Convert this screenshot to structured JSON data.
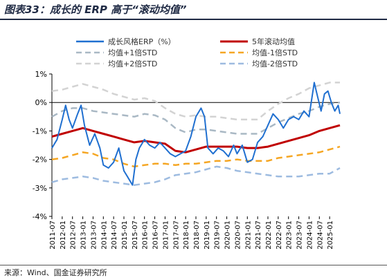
{
  "figure": {
    "title": "图表33：成长的 ERP 高于“滚动均值”",
    "source": "来源：Wind、国金证券研究所"
  },
  "colors": {
    "growth_erp": "#1f6fd0",
    "rolling_mean": "#c00000",
    "plus1std": "#a9b8c4",
    "minus1std": "#f5a623",
    "plus2std": "#d3d3d3",
    "minus2std": "#9dbbe0",
    "title_text": "#1f2a44"
  },
  "chart_data": {
    "type": "line",
    "ylim": [
      -4,
      1
    ],
    "yticks": [
      1,
      0,
      -1,
      -2,
      -3,
      -4
    ],
    "ytick_labels": [
      "1%",
      "0%",
      "-1%",
      "-2%",
      "-3%",
      "-4%"
    ],
    "xlim": [
      "2011-07",
      "2025-07"
    ],
    "xtick_labels": [
      "2011-07",
      "2012-01",
      "2012-07",
      "2013-01",
      "2013-07",
      "2014-01",
      "2014-07",
      "2015-01",
      "2015-07",
      "2016-01",
      "2016-07",
      "2017-01",
      "2017-07",
      "2018-01",
      "2018-07",
      "2019-01",
      "2019-07",
      "2020-01",
      "2020-07",
      "2021-01",
      "2021-07",
      "2022-01",
      "2022-07",
      "2023-01",
      "2023-07",
      "2024-01",
      "2024-07",
      "2025-01"
    ],
    "grid": false,
    "legend_position": "top",
    "series": [
      {
        "name": "成长风格ERP（%）",
        "color_key": "growth_erp",
        "style": "solid",
        "width": 2,
        "points": [
          [
            "2011-07",
            -1.6
          ],
          [
            "2011-10",
            -1.3
          ],
          [
            "2012-01",
            -0.6
          ],
          [
            "2012-03",
            -0.1
          ],
          [
            "2012-05",
            -0.6
          ],
          [
            "2012-07",
            -0.9
          ],
          [
            "2012-10",
            -0.4
          ],
          [
            "2012-12",
            -0.1
          ],
          [
            "2013-02",
            -0.8
          ],
          [
            "2013-05",
            -1.5
          ],
          [
            "2013-08",
            -1.1
          ],
          [
            "2013-11",
            -1.6
          ],
          [
            "2014-01",
            -2.2
          ],
          [
            "2014-04",
            -2.3
          ],
          [
            "2014-07",
            -2.1
          ],
          [
            "2014-10",
            -1.6
          ],
          [
            "2015-01",
            -2.4
          ],
          [
            "2015-03",
            -2.6
          ],
          [
            "2015-06",
            -2.9
          ],
          [
            "2015-08",
            -2.0
          ],
          [
            "2015-10",
            -1.6
          ],
          [
            "2016-01",
            -1.3
          ],
          [
            "2016-04",
            -1.5
          ],
          [
            "2016-07",
            -1.6
          ],
          [
            "2016-10",
            -1.4
          ],
          [
            "2017-01",
            -1.6
          ],
          [
            "2017-04",
            -1.8
          ],
          [
            "2017-07",
            -1.9
          ],
          [
            "2017-10",
            -1.8
          ],
          [
            "2018-01",
            -1.7
          ],
          [
            "2018-04",
            -1.2
          ],
          [
            "2018-07",
            -0.5
          ],
          [
            "2018-10",
            -0.2
          ],
          [
            "2018-12",
            -0.5
          ],
          [
            "2019-02",
            -1.6
          ],
          [
            "2019-05",
            -1.8
          ],
          [
            "2019-08",
            -1.6
          ],
          [
            "2019-11",
            -1.7
          ],
          [
            "2020-02",
            -1.9
          ],
          [
            "2020-05",
            -1.5
          ],
          [
            "2020-07",
            -1.8
          ],
          [
            "2020-10",
            -1.5
          ],
          [
            "2021-01",
            -2.1
          ],
          [
            "2021-04",
            -2.0
          ],
          [
            "2021-07",
            -1.4
          ],
          [
            "2021-10",
            -1.2
          ],
          [
            "2022-01",
            -0.8
          ],
          [
            "2022-04",
            -0.4
          ],
          [
            "2022-07",
            -0.6
          ],
          [
            "2022-10",
            -0.9
          ],
          [
            "2023-01",
            -0.6
          ],
          [
            "2023-04",
            -0.5
          ],
          [
            "2023-07",
            -0.6
          ],
          [
            "2023-10",
            -0.3
          ],
          [
            "2024-01",
            -0.5
          ],
          [
            "2024-02",
            -0.1
          ],
          [
            "2024-04",
            0.7
          ],
          [
            "2024-06",
            0.2
          ],
          [
            "2024-08",
            -0.3
          ],
          [
            "2024-10",
            0.3
          ],
          [
            "2024-12",
            0.4
          ],
          [
            "2025-02",
            0.0
          ],
          [
            "2025-04",
            -0.3
          ],
          [
            "2025-06",
            -0.1
          ],
          [
            "2025-07",
            -0.4
          ]
        ]
      },
      {
        "name": "5年滚动均值",
        "color_key": "rolling_mean",
        "style": "solid",
        "width": 3,
        "points": [
          [
            "2011-07",
            -1.2
          ],
          [
            "2012-01",
            -1.1
          ],
          [
            "2012-07",
            -1.0
          ],
          [
            "2013-01",
            -0.9
          ],
          [
            "2013-07",
            -1.0
          ],
          [
            "2014-01",
            -1.1
          ],
          [
            "2014-07",
            -1.2
          ],
          [
            "2015-01",
            -1.3
          ],
          [
            "2015-07",
            -1.4
          ],
          [
            "2016-01",
            -1.35
          ],
          [
            "2016-07",
            -1.4
          ],
          [
            "2017-01",
            -1.45
          ],
          [
            "2017-07",
            -1.7
          ],
          [
            "2018-01",
            -1.75
          ],
          [
            "2018-07",
            -1.65
          ],
          [
            "2019-01",
            -1.55
          ],
          [
            "2019-07",
            -1.55
          ],
          [
            "2020-01",
            -1.55
          ],
          [
            "2020-07",
            -1.55
          ],
          [
            "2021-01",
            -1.6
          ],
          [
            "2021-07",
            -1.6
          ],
          [
            "2022-01",
            -1.55
          ],
          [
            "2022-07",
            -1.45
          ],
          [
            "2023-01",
            -1.35
          ],
          [
            "2023-07",
            -1.25
          ],
          [
            "2024-01",
            -1.15
          ],
          [
            "2024-07",
            -1.0
          ],
          [
            "2025-01",
            -0.9
          ],
          [
            "2025-07",
            -0.8
          ]
        ]
      },
      {
        "name": "均值+1倍STD",
        "color_key": "plus1std",
        "style": "dashed",
        "width": 2.5,
        "points": [
          [
            "2011-07",
            -0.5
          ],
          [
            "2012-01",
            -0.3
          ],
          [
            "2012-07",
            -0.2
          ],
          [
            "2013-01",
            -0.2
          ],
          [
            "2013-07",
            -0.3
          ],
          [
            "2014-01",
            -0.35
          ],
          [
            "2014-07",
            -0.4
          ],
          [
            "2015-01",
            -0.45
          ],
          [
            "2015-07",
            -0.5
          ],
          [
            "2016-01",
            -0.4
          ],
          [
            "2016-07",
            -0.45
          ],
          [
            "2017-01",
            -0.6
          ],
          [
            "2017-07",
            -0.9
          ],
          [
            "2018-01",
            -1.05
          ],
          [
            "2018-07",
            -0.95
          ],
          [
            "2019-01",
            -0.95
          ],
          [
            "2019-07",
            -1.0
          ],
          [
            "2020-01",
            -1.05
          ],
          [
            "2020-07",
            -1.1
          ],
          [
            "2021-01",
            -1.1
          ],
          [
            "2021-07",
            -1.1
          ],
          [
            "2022-01",
            -0.9
          ],
          [
            "2022-07",
            -0.7
          ],
          [
            "2023-01",
            -0.55
          ],
          [
            "2023-07",
            -0.4
          ],
          [
            "2024-01",
            -0.3
          ],
          [
            "2024-07",
            -0.15
          ],
          [
            "2025-01",
            -0.05
          ],
          [
            "2025-07",
            0.0
          ]
        ]
      },
      {
        "name": "均值-1倍STD",
        "color_key": "minus1std",
        "style": "dashed",
        "width": 2.5,
        "points": [
          [
            "2011-07",
            -2.0
          ],
          [
            "2012-01",
            -1.95
          ],
          [
            "2012-07",
            -1.85
          ],
          [
            "2013-01",
            -1.75
          ],
          [
            "2013-07",
            -1.8
          ],
          [
            "2014-01",
            -1.95
          ],
          [
            "2014-07",
            -2.0
          ],
          [
            "2015-01",
            -2.15
          ],
          [
            "2015-07",
            -2.25
          ],
          [
            "2016-01",
            -2.2
          ],
          [
            "2016-07",
            -2.15
          ],
          [
            "2017-01",
            -2.15
          ],
          [
            "2017-07",
            -2.2
          ],
          [
            "2018-01",
            -2.15
          ],
          [
            "2018-07",
            -2.15
          ],
          [
            "2019-01",
            -2.1
          ],
          [
            "2019-07",
            -2.05
          ],
          [
            "2020-01",
            -2.05
          ],
          [
            "2020-07",
            -2.0
          ],
          [
            "2021-01",
            -2.05
          ],
          [
            "2021-07",
            -2.05
          ],
          [
            "2022-01",
            -2.05
          ],
          [
            "2022-07",
            -1.95
          ],
          [
            "2023-01",
            -1.9
          ],
          [
            "2023-07",
            -1.85
          ],
          [
            "2024-01",
            -1.8
          ],
          [
            "2024-07",
            -1.75
          ],
          [
            "2025-01",
            -1.65
          ],
          [
            "2025-07",
            -1.55
          ]
        ]
      },
      {
        "name": "均值+2倍STD",
        "color_key": "plus2std",
        "style": "dashed",
        "width": 2.5,
        "points": [
          [
            "2011-07",
            0.4
          ],
          [
            "2012-01",
            0.45
          ],
          [
            "2012-07",
            0.55
          ],
          [
            "2013-01",
            0.65
          ],
          [
            "2013-07",
            0.55
          ],
          [
            "2014-01",
            0.45
          ],
          [
            "2014-07",
            0.3
          ],
          [
            "2015-01",
            0.2
          ],
          [
            "2015-07",
            0.1
          ],
          [
            "2016-01",
            0.15
          ],
          [
            "2016-07",
            0.05
          ],
          [
            "2017-01",
            -0.2
          ],
          [
            "2017-07",
            -0.4
          ],
          [
            "2018-01",
            -0.5
          ],
          [
            "2018-07",
            -0.45
          ],
          [
            "2019-01",
            -0.5
          ],
          [
            "2019-07",
            -0.5
          ],
          [
            "2020-01",
            -0.55
          ],
          [
            "2020-07",
            -0.6
          ],
          [
            "2021-01",
            -0.6
          ],
          [
            "2021-07",
            -0.6
          ],
          [
            "2022-01",
            -0.3
          ],
          [
            "2022-07",
            -0.05
          ],
          [
            "2023-01",
            0.15
          ],
          [
            "2023-07",
            0.3
          ],
          [
            "2024-01",
            0.5
          ],
          [
            "2024-07",
            0.6
          ],
          [
            "2025-01",
            0.7
          ],
          [
            "2025-07",
            0.7
          ]
        ]
      },
      {
        "name": "均值-2倍STD",
        "color_key": "minus2std",
        "style": "dashed",
        "width": 2.5,
        "points": [
          [
            "2011-07",
            -2.8
          ],
          [
            "2012-01",
            -2.7
          ],
          [
            "2012-07",
            -2.65
          ],
          [
            "2013-01",
            -2.6
          ],
          [
            "2013-07",
            -2.65
          ],
          [
            "2014-01",
            -2.75
          ],
          [
            "2014-07",
            -2.8
          ],
          [
            "2015-01",
            -2.85
          ],
          [
            "2015-07",
            -2.9
          ],
          [
            "2016-01",
            -2.85
          ],
          [
            "2016-07",
            -2.8
          ],
          [
            "2017-01",
            -2.7
          ],
          [
            "2017-07",
            -2.55
          ],
          [
            "2018-01",
            -2.5
          ],
          [
            "2018-07",
            -2.45
          ],
          [
            "2019-01",
            -2.35
          ],
          [
            "2019-07",
            -2.25
          ],
          [
            "2020-01",
            -2.3
          ],
          [
            "2020-07",
            -2.4
          ],
          [
            "2021-01",
            -2.45
          ],
          [
            "2021-07",
            -2.5
          ],
          [
            "2022-01",
            -2.55
          ],
          [
            "2022-07",
            -2.6
          ],
          [
            "2023-01",
            -2.6
          ],
          [
            "2023-07",
            -2.6
          ],
          [
            "2024-01",
            -2.55
          ],
          [
            "2024-07",
            -2.5
          ],
          [
            "2025-01",
            -2.5
          ],
          [
            "2025-07",
            -2.3
          ]
        ]
      }
    ]
  }
}
